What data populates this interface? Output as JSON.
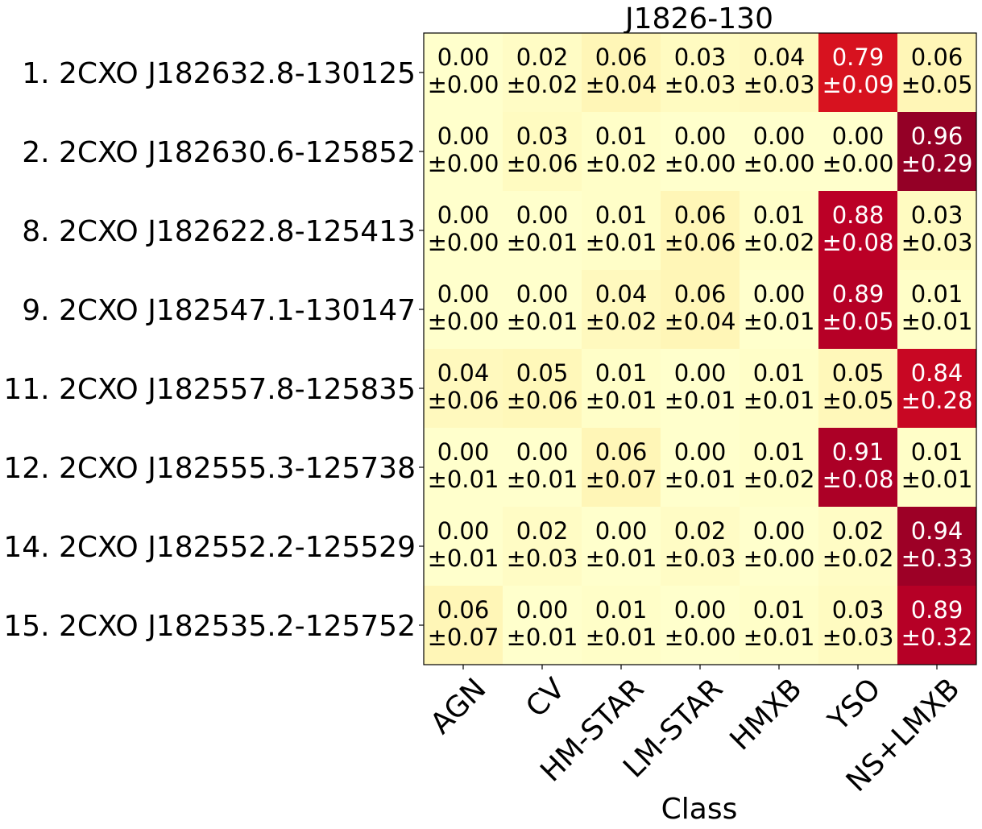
{
  "chart_data": {
    "type": "heatmap",
    "title": "J1826-130",
    "xlabel": "Class",
    "ylabel": "",
    "columns": [
      "AGN",
      "CV",
      "HM-STAR",
      "LM-STAR",
      "HMXB",
      "YSO",
      "NS+LMXB"
    ],
    "rows": [
      "1. 2CXO J182632.8-130125",
      "2. 2CXO J182630.6-125852",
      "8. 2CXO J182622.8-125413",
      "9. 2CXO J182547.1-130147",
      "11. 2CXO J182557.8-125835",
      "12. 2CXO J182555.3-125738",
      "14. 2CXO J182552.2-125529",
      "15. 2CXO J182535.2-125752"
    ],
    "values": [
      [
        0.0,
        0.02,
        0.06,
        0.03,
        0.04,
        0.79,
        0.06
      ],
      [
        0.0,
        0.03,
        0.01,
        0.0,
        0.0,
        0.0,
        0.96
      ],
      [
        0.0,
        0.0,
        0.01,
        0.06,
        0.01,
        0.88,
        0.03
      ],
      [
        0.0,
        0.0,
        0.04,
        0.06,
        0.0,
        0.89,
        0.01
      ],
      [
        0.04,
        0.05,
        0.01,
        0.0,
        0.01,
        0.05,
        0.84
      ],
      [
        0.0,
        0.0,
        0.06,
        0.0,
        0.01,
        0.91,
        0.01
      ],
      [
        0.0,
        0.02,
        0.0,
        0.02,
        0.0,
        0.02,
        0.94
      ],
      [
        0.06,
        0.0,
        0.01,
        0.0,
        0.01,
        0.03,
        0.89
      ]
    ],
    "errors": [
      [
        0.0,
        0.02,
        0.04,
        0.03,
        0.03,
        0.09,
        0.05
      ],
      [
        0.0,
        0.06,
        0.02,
        0.0,
        0.0,
        0.0,
        0.29
      ],
      [
        0.0,
        0.01,
        0.01,
        0.06,
        0.02,
        0.08,
        0.03
      ],
      [
        0.0,
        0.01,
        0.02,
        0.04,
        0.01,
        0.05,
        0.01
      ],
      [
        0.06,
        0.06,
        0.01,
        0.01,
        0.01,
        0.05,
        0.28
      ],
      [
        0.01,
        0.01,
        0.07,
        0.01,
        0.02,
        0.08,
        0.01
      ],
      [
        0.01,
        0.03,
        0.01,
        0.03,
        0.0,
        0.02,
        0.33
      ],
      [
        0.07,
        0.01,
        0.01,
        0.0,
        0.01,
        0.03,
        0.32
      ]
    ],
    "colormap": "YlOrRd",
    "color_range": [
      0,
      1
    ]
  }
}
